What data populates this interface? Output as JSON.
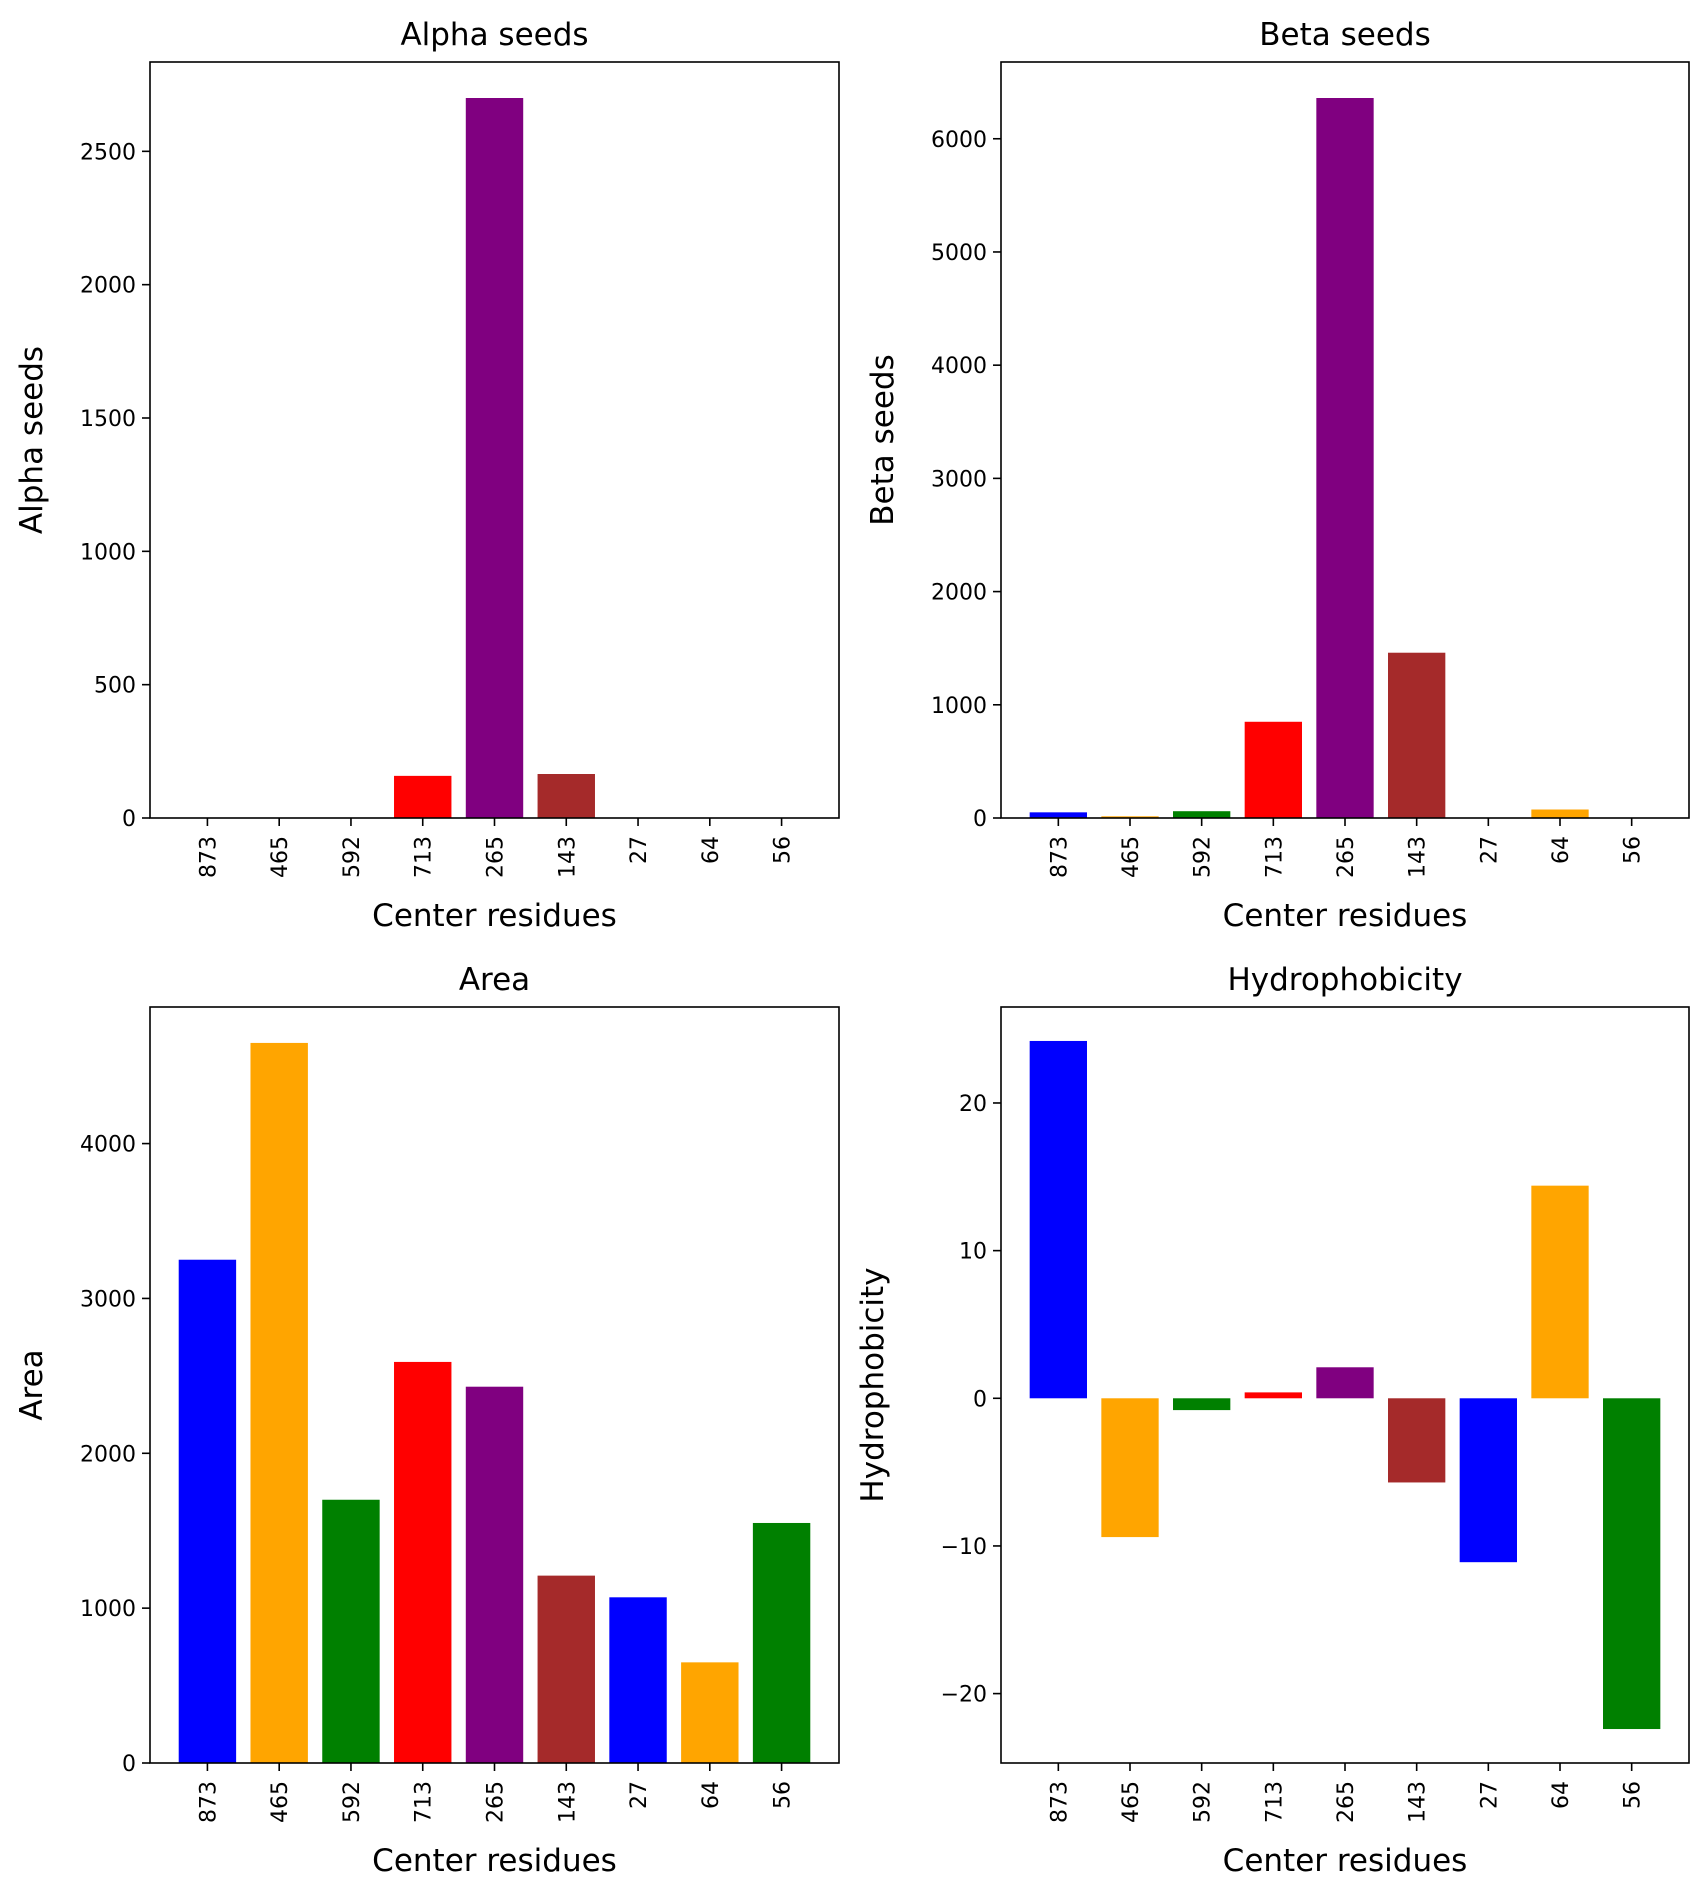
{
  "chart_data": [
    {
      "type": "bar",
      "title": "Alpha seeds",
      "xlabel": "Center residues",
      "ylabel": "Alpha seeds",
      "categories": [
        "873",
        "465",
        "592",
        "713",
        "265",
        "143",
        "27",
        "64",
        "56"
      ],
      "values": [
        0,
        0,
        0,
        158,
        2700,
        165,
        0,
        0,
        0
      ],
      "colors": [
        "#0000ff",
        "#ffa500",
        "#008000",
        "#ff0000",
        "#800080",
        "#a52a2a",
        "#0000ff",
        "#ffa500",
        "#008000"
      ],
      "ylim": [
        0,
        2835
      ],
      "yticks": [
        0,
        500,
        1000,
        1500,
        2000,
        2500
      ],
      "grid": false
    },
    {
      "type": "bar",
      "title": "Beta seeds",
      "xlabel": "Center residues",
      "ylabel": "Beta seeds",
      "categories": [
        "873",
        "465",
        "592",
        "713",
        "265",
        "143",
        "27",
        "64",
        "56"
      ],
      "values": [
        50,
        15,
        60,
        850,
        6360,
        1460,
        0,
        75,
        0
      ],
      "colors": [
        "#0000ff",
        "#ffa500",
        "#008000",
        "#ff0000",
        "#800080",
        "#a52a2a",
        "#0000ff",
        "#ffa500",
        "#008000"
      ],
      "ylim": [
        0,
        6678
      ],
      "yticks": [
        0,
        1000,
        2000,
        3000,
        4000,
        5000,
        6000
      ],
      "grid": false
    },
    {
      "type": "bar",
      "title": "Area",
      "xlabel": "Center residues",
      "ylabel": "Area",
      "categories": [
        "873",
        "465",
        "592",
        "713",
        "265",
        "143",
        "27",
        "64",
        "56"
      ],
      "values": [
        3250,
        4650,
        1700,
        2590,
        2430,
        1210,
        1070,
        650,
        1550
      ],
      "colors": [
        "#0000ff",
        "#ffa500",
        "#008000",
        "#ff0000",
        "#800080",
        "#a52a2a",
        "#0000ff",
        "#ffa500",
        "#008000"
      ],
      "ylim": [
        0,
        4882
      ],
      "yticks": [
        0,
        1000,
        2000,
        3000,
        4000
      ],
      "grid": false
    },
    {
      "type": "bar",
      "title": "Hydrophobicity",
      "xlabel": "Center residues",
      "ylabel": "Hydrophobicity",
      "categories": [
        "873",
        "465",
        "592",
        "713",
        "265",
        "143",
        "27",
        "64",
        "56"
      ],
      "values": [
        24.2,
        -9.4,
        -0.8,
        0.4,
        2.1,
        -5.7,
        -11.1,
        14.4,
        -22.4
      ],
      "colors": [
        "#0000ff",
        "#ffa500",
        "#008000",
        "#ff0000",
        "#800080",
        "#a52a2a",
        "#0000ff",
        "#ffa500",
        "#008000"
      ],
      "ylim": [
        -24.7,
        26.5
      ],
      "yticks": [
        -20,
        -10,
        0,
        10,
        20
      ],
      "grid": false
    }
  ]
}
